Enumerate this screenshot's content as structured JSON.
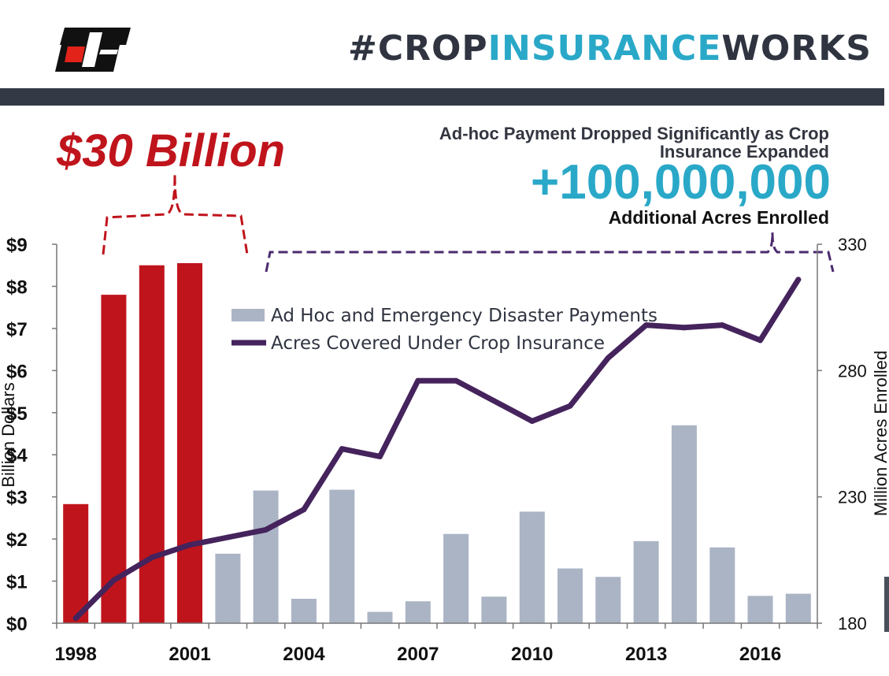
{
  "header": {
    "hashtag_part1": "#CROP",
    "hashtag_part2": "INSURANCE",
    "hashtag_part3": "WORKS",
    "logo": "farm-bureau-fb-logo"
  },
  "callouts": {
    "total_label": "$30 Billion",
    "subtitle": "Ad-hoc Payment Dropped Significantly as Crop Insurance Expanded",
    "acres_number": "+100,000,000",
    "acres_caption": "Additional Acres Enrolled"
  },
  "colors": {
    "highlight_bar": "#c0141c",
    "bar": "#aab4c5",
    "line": "#45235c",
    "bracket_red": "#c0141c",
    "bracket_purple": "#4b2a6e",
    "accent_cyan": "#2aa8c8",
    "header_bar": "#343a45"
  },
  "chart_data": {
    "type": "bar",
    "title": "",
    "categories": [
      1998,
      1999,
      2000,
      2001,
      2002,
      2003,
      2004,
      2005,
      2006,
      2007,
      2008,
      2009,
      2010,
      2011,
      2012,
      2013,
      2014,
      2015,
      2016,
      2017
    ],
    "x_tick_labels": [
      "1998",
      "2001",
      "2004",
      "2007",
      "2010",
      "2013",
      "2016"
    ],
    "ylabel": "Billion Dollars",
    "y_tick_labels": [
      "$0",
      "$1",
      "$2",
      "$3",
      "$4",
      "$5",
      "$6",
      "$7",
      "$8",
      "$9"
    ],
    "ylim": [
      0,
      9
    ],
    "y2label": "Million Acres Enrolled",
    "y2_tick_labels": [
      "180",
      "230",
      "280",
      "330"
    ],
    "y2lim": [
      180,
      330
    ],
    "highlighted_categories": [
      1998,
      1999,
      2000,
      2001
    ],
    "series": [
      {
        "name": "Ad Hoc and Emergency Disaster Payments",
        "type": "bar",
        "axis": "left",
        "values": [
          2.83,
          7.8,
          8.5,
          8.55,
          1.65,
          3.15,
          0.58,
          3.17,
          0.27,
          0.52,
          2.12,
          0.63,
          2.65,
          1.3,
          1.1,
          1.95,
          4.7,
          1.8,
          0.65,
          0.7
        ]
      },
      {
        "name": "Acres Covered Under Crop Insurance",
        "type": "line",
        "axis": "right",
        "values": [
          182,
          197,
          206,
          211,
          214,
          217,
          225,
          249,
          246,
          276,
          276,
          268,
          260,
          266,
          285,
          298,
          297,
          298,
          292,
          316
        ]
      }
    ],
    "grid": false,
    "legend_position": "top-center"
  }
}
